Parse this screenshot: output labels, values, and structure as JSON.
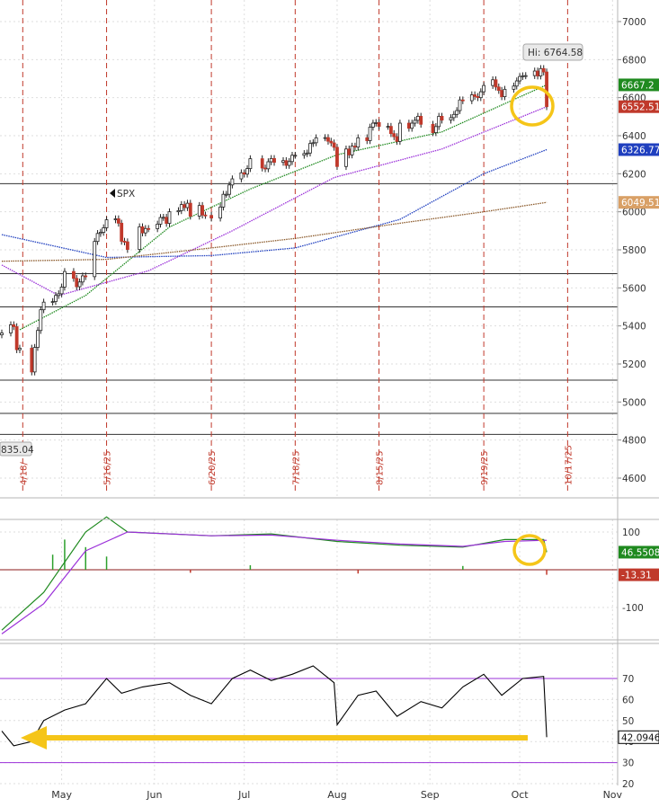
{
  "chart_data": [
    {
      "type": "candlestick",
      "symbol": "SPX",
      "hi_label": "Hi: 6764.58",
      "y_ticks": [
        4600,
        4800,
        5000,
        5200,
        5400,
        5600,
        5800,
        6000,
        6200,
        6400,
        6600,
        6800,
        7000
      ],
      "ylim": [
        4480,
        7080
      ],
      "badges": [
        {
          "value": "6667.2",
          "color": "#1f8a1f"
        },
        {
          "value": "6552.51",
          "color": "#c0392b"
        },
        {
          "value": "6326.77",
          "color": "#1f3fbf"
        },
        {
          "value": "6049.51",
          "color": "#d9a066"
        }
      ],
      "cut_label": "835.04",
      "horizontal_levels": [
        6148,
        5675,
        5500,
        5115,
        4940,
        4830
      ],
      "event_dates": [
        "4/18/",
        "5/16/25",
        "6/20/25",
        "7/18/25",
        "8/15/25",
        "9/19/25",
        "10/17/25"
      ],
      "close_path": [
        [
          "04-11",
          5363
        ],
        [
          "04-14",
          5406
        ],
        [
          "04-15",
          5396
        ],
        [
          "04-16",
          5275
        ],
        [
          "04-17",
          5283
        ],
        [
          "04-21",
          5158
        ],
        [
          "04-22",
          5287
        ],
        [
          "04-23",
          5376
        ],
        [
          "04-24",
          5485
        ],
        [
          "04-25",
          5525
        ],
        [
          "04-28",
          5528
        ],
        [
          "04-29",
          5560
        ],
        [
          "04-30",
          5569
        ],
        [
          "05-01",
          5604
        ],
        [
          "05-02",
          5686
        ],
        [
          "05-05",
          5650
        ],
        [
          "05-06",
          5606
        ],
        [
          "05-07",
          5631
        ],
        [
          "05-08",
          5663
        ],
        [
          "05-09",
          5659
        ],
        [
          "05-12",
          5844
        ],
        [
          "05-13",
          5886
        ],
        [
          "05-14",
          5892
        ],
        [
          "05-15",
          5916
        ],
        [
          "05-16",
          5958
        ],
        [
          "05-19",
          5963
        ],
        [
          "05-20",
          5940
        ],
        [
          "05-21",
          5845
        ],
        [
          "05-22",
          5842
        ],
        [
          "05-23",
          5802
        ],
        [
          "05-27",
          5921
        ],
        [
          "05-28",
          5889
        ],
        [
          "05-29",
          5912
        ],
        [
          "05-30",
          5911
        ],
        [
          "06-02",
          5935
        ],
        [
          "06-03",
          5970
        ],
        [
          "06-04",
          5971
        ],
        [
          "06-05",
          5939
        ],
        [
          "06-06",
          6000
        ],
        [
          "06-09",
          6006
        ],
        [
          "06-10",
          6038
        ],
        [
          "06-11",
          6022
        ],
        [
          "06-12",
          6045
        ],
        [
          "06-13",
          5977
        ],
        [
          "06-16",
          6033
        ],
        [
          "06-17",
          5983
        ],
        [
          "06-18",
          5981
        ],
        [
          "06-20",
          5967
        ],
        [
          "06-23",
          6025
        ],
        [
          "06-24",
          6092
        ],
        [
          "06-25",
          6092
        ],
        [
          "06-26",
          6141
        ],
        [
          "06-27",
          6173
        ],
        [
          "06-30",
          6205
        ],
        [
          "07-01",
          6198
        ],
        [
          "07-02",
          6227
        ],
        [
          "07-03",
          6279
        ],
        [
          "07-07",
          6230
        ],
        [
          "07-08",
          6226
        ],
        [
          "07-09",
          6263
        ],
        [
          "07-10",
          6280
        ],
        [
          "07-11",
          6260
        ],
        [
          "07-14",
          6269
        ],
        [
          "07-15",
          6244
        ],
        [
          "07-16",
          6264
        ],
        [
          "07-17",
          6297
        ],
        [
          "07-18",
          6297
        ],
        [
          "07-21",
          6306
        ],
        [
          "07-22",
          6309
        ],
        [
          "07-23",
          6359
        ],
        [
          "07-24",
          6363
        ],
        [
          "07-25",
          6389
        ],
        [
          "07-28",
          6390
        ],
        [
          "07-29",
          6371
        ],
        [
          "07-30",
          6362
        ],
        [
          "07-31",
          6339
        ],
        [
          "08-01",
          6238
        ],
        [
          "08-04",
          6330
        ],
        [
          "08-05",
          6299
        ],
        [
          "08-06",
          6345
        ],
        [
          "08-07",
          6340
        ],
        [
          "08-08",
          6389
        ],
        [
          "08-11",
          6374
        ],
        [
          "08-12",
          6445
        ],
        [
          "08-13",
          6466
        ],
        [
          "08-14",
          6469
        ],
        [
          "08-15",
          6449
        ],
        [
          "08-18",
          6449
        ],
        [
          "08-19",
          6411
        ],
        [
          "08-20",
          6395
        ],
        [
          "08-21",
          6370
        ],
        [
          "08-22",
          6466
        ],
        [
          "08-25",
          6439
        ],
        [
          "08-26",
          6466
        ],
        [
          "08-27",
          6481
        ],
        [
          "08-28",
          6502
        ],
        [
          "08-29",
          6460
        ],
        [
          "09-02",
          6416
        ],
        [
          "09-03",
          6448
        ],
        [
          "09-04",
          6502
        ],
        [
          "09-05",
          6482
        ],
        [
          "09-08",
          6495
        ],
        [
          "09-09",
          6512
        ],
        [
          "09-10",
          6532
        ],
        [
          "09-11",
          6588
        ],
        [
          "09-12",
          6584
        ],
        [
          "09-15",
          6615
        ],
        [
          "09-16",
          6606
        ],
        [
          "09-17",
          6600
        ],
        [
          "09-18",
          6631
        ],
        [
          "09-19",
          6664
        ],
        [
          "09-22",
          6694
        ],
        [
          "09-23",
          6656
        ],
        [
          "09-24",
          6638
        ],
        [
          "09-25",
          6605
        ],
        [
          "09-26",
          6644
        ],
        [
          "09-29",
          6661
        ],
        [
          "09-30",
          6688
        ],
        [
          "10-01",
          6711
        ],
        [
          "10-02",
          6715
        ],
        [
          "10-03",
          6716
        ],
        [
          "10-06",
          6740
        ],
        [
          "10-07",
          6714
        ],
        [
          "10-08",
          6753
        ],
        [
          "10-09",
          6735
        ],
        [
          "10-10",
          6552.51
        ]
      ],
      "moving_averages": [
        {
          "color": "#1f8a1f",
          "points": [
            [
              "04-17",
              5380
            ],
            [
              "05-09",
              5560
            ],
            [
              "06-06",
              5920
            ],
            [
              "07-03",
              6120
            ],
            [
              "08-01",
              6300
            ],
            [
              "09-05",
              6420
            ],
            [
              "10-10",
              6667.2
            ]
          ]
        },
        {
          "color": "#9b30d9",
          "points": [
            [
              "04-11",
              5720
            ],
            [
              "04-30",
              5560
            ],
            [
              "05-30",
              5690
            ],
            [
              "06-27",
              5900
            ],
            [
              "07-31",
              6180
            ],
            [
              "09-05",
              6330
            ],
            [
              "10-10",
              6552.51
            ]
          ]
        },
        {
          "color": "#1f3fbf",
          "points": [
            [
              "04-11",
              5880
            ],
            [
              "05-16",
              5760
            ],
            [
              "06-20",
              5770
            ],
            [
              "07-18",
              5810
            ],
            [
              "08-22",
              5960
            ],
            [
              "09-19",
              6200
            ],
            [
              "10-10",
              6326.77
            ]
          ]
        },
        {
          "color": "#8b5a2b",
          "points": [
            [
              "04-11",
              5740
            ],
            [
              "05-16",
              5750
            ],
            [
              "06-20",
              5810
            ],
            [
              "07-18",
              5860
            ],
            [
              "08-22",
              5940
            ],
            [
              "09-19",
              6000
            ],
            [
              "10-10",
              6049.51
            ]
          ]
        }
      ]
    },
    {
      "type": "line",
      "indicator": "momentum",
      "y_ticks": [
        100,
        -100
      ],
      "ylim": [
        -180,
        155
      ],
      "badges": [
        {
          "value": "46.5508",
          "color": "#1f8a1f"
        },
        {
          "value": "-13.31",
          "color": "#c0392b"
        }
      ],
      "series": [
        {
          "color": "#1f8a1f",
          "points": [
            [
              "04-11",
              -160
            ],
            [
              "04-25",
              -60
            ],
            [
              "05-09",
              100
            ],
            [
              "05-16",
              140
            ],
            [
              "05-23",
              100
            ],
            [
              "06-20",
              90
            ],
            [
              "07-10",
              95
            ],
            [
              "08-01",
              75
            ],
            [
              "08-22",
              65
            ],
            [
              "09-12",
              60
            ],
            [
              "09-26",
              80
            ],
            [
              "10-09",
              80
            ],
            [
              "10-10",
              46.55
            ]
          ]
        },
        {
          "color": "#9b30d9",
          "points": [
            [
              "04-11",
              -170
            ],
            [
              "04-25",
              -90
            ],
            [
              "05-09",
              50
            ],
            [
              "05-23",
              100
            ],
            [
              "06-20",
              90
            ],
            [
              "07-10",
              92
            ],
            [
              "08-01",
              78
            ],
            [
              "08-22",
              68
            ],
            [
              "09-12",
              62
            ],
            [
              "09-26",
              75
            ],
            [
              "10-10",
              78
            ]
          ]
        }
      ],
      "histogram": [
        {
          "date": "04-28",
          "value": 40
        },
        {
          "date": "05-02",
          "value": 80
        },
        {
          "date": "05-09",
          "value": 60
        },
        {
          "date": "05-16",
          "value": 35
        },
        {
          "date": "06-13",
          "value": -8
        },
        {
          "date": "07-03",
          "value": 12
        },
        {
          "date": "08-08",
          "value": -10
        },
        {
          "date": "09-12",
          "value": 10
        },
        {
          "date": "10-10",
          "value": -13.31
        }
      ]
    },
    {
      "type": "line",
      "indicator": "oscillator",
      "y_ticks": [
        20,
        30,
        40,
        50,
        60,
        70
      ],
      "ylim": [
        20,
        78
      ],
      "reference_lines": [
        70,
        30
      ],
      "badges": [
        {
          "value": "42.0946",
          "color": "#000000"
        }
      ],
      "series": [
        {
          "color": "#000000",
          "points": [
            [
              "04-11",
              45
            ],
            [
              "04-15",
              38
            ],
            [
              "04-21",
              40
            ],
            [
              "04-25",
              50
            ],
            [
              "05-02",
              55
            ],
            [
              "05-09",
              58
            ],
            [
              "05-16",
              70
            ],
            [
              "05-21",
              63
            ],
            [
              "05-28",
              66
            ],
            [
              "06-06",
              68
            ],
            [
              "06-13",
              62
            ],
            [
              "06-20",
              58
            ],
            [
              "06-27",
              70
            ],
            [
              "07-03",
              74
            ],
            [
              "07-10",
              69
            ],
            [
              "07-17",
              72
            ],
            [
              "07-24",
              76
            ],
            [
              "07-31",
              68
            ],
            [
              "08-01",
              48
            ],
            [
              "08-08",
              62
            ],
            [
              "08-14",
              64
            ],
            [
              "08-21",
              52
            ],
            [
              "08-29",
              59
            ],
            [
              "09-05",
              56
            ],
            [
              "09-12",
              66
            ],
            [
              "09-19",
              72
            ],
            [
              "09-25",
              62
            ],
            [
              "10-02",
              70
            ],
            [
              "10-09",
              71
            ],
            [
              "10-10",
              42.09
            ]
          ]
        }
      ]
    },
    {
      "type": "x-axis",
      "months": [
        "May",
        "Jun",
        "Jul",
        "Aug",
        "Sep",
        "Oct",
        "Nov"
      ]
    }
  ]
}
